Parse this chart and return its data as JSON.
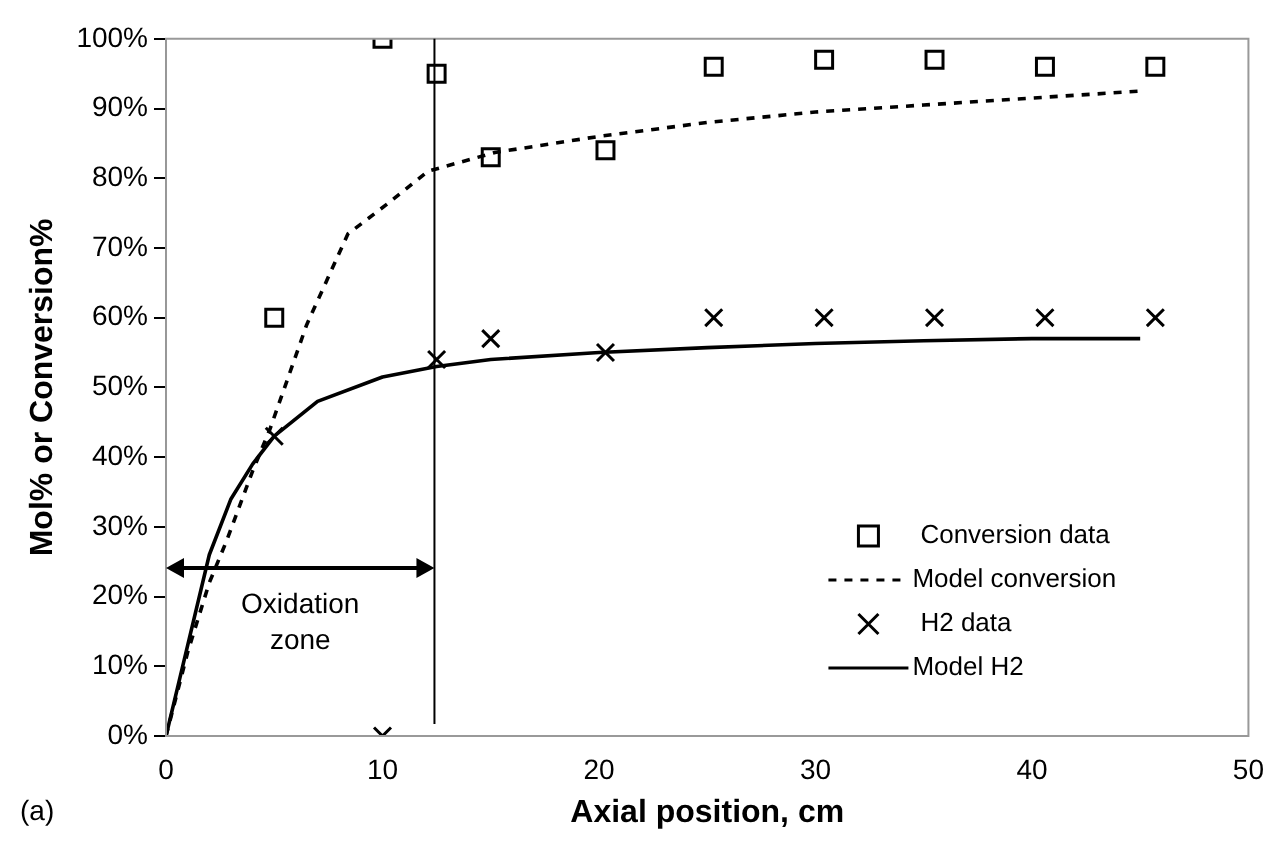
{
  "chart_data": {
    "type": "scatter",
    "xlabel": "Axial position, cm",
    "ylabel": "Mol% or Conversion%",
    "xlim": [
      0,
      50
    ],
    "xticks": [
      0,
      10,
      20,
      30,
      40,
      50
    ],
    "ylim": [
      0,
      100
    ],
    "yticks": [
      {
        "value": 0,
        "label": "0%"
      },
      {
        "value": 10,
        "label": "10%"
      },
      {
        "value": 20,
        "label": "20%"
      },
      {
        "value": 30,
        "label": "30%"
      },
      {
        "value": 40,
        "label": "40%"
      },
      {
        "value": 50,
        "label": "50%"
      },
      {
        "value": 60,
        "label": "60%"
      },
      {
        "value": 70,
        "label": "70%"
      },
      {
        "value": 80,
        "label": "80%"
      },
      {
        "value": 90,
        "label": "90%"
      },
      {
        "value": 100,
        "label": "100%"
      }
    ],
    "grid": false,
    "legend": "bottom right",
    "series": [
      {
        "name": "Conversion data",
        "marker": "square",
        "color": "#000000",
        "x": [
          5,
          10,
          12.5,
          15,
          20.3,
          25.3,
          30.4,
          35.5,
          40.6,
          45.7
        ],
        "values": [
          60,
          100,
          95,
          83,
          84,
          96,
          97,
          97,
          96,
          96
        ]
      },
      {
        "name": "Model conversion",
        "type": "line",
        "marker": "none",
        "line_style": "dashed",
        "color": "#000000",
        "x": [
          0,
          1,
          2,
          2.8,
          4,
          4.8,
          6.5,
          8.4,
          10.3,
          12.1,
          15.2,
          20,
          25,
          30,
          35,
          40,
          45
        ],
        "values": [
          0,
          12,
          22,
          28,
          38,
          44,
          59,
          72,
          76.5,
          81,
          83.7,
          86,
          88,
          89.5,
          90.5,
          91.5,
          92.5
        ]
      },
      {
        "name": "H2 data",
        "marker": "cross",
        "color": "#000000",
        "x": [
          5,
          10,
          12.5,
          15,
          20.3,
          25.3,
          30.4,
          35.5,
          40.6,
          45.7
        ],
        "values": [
          43,
          0,
          54,
          57,
          55,
          60,
          60,
          60,
          60,
          60
        ]
      },
      {
        "name": "Model H2",
        "type": "line",
        "marker": "none",
        "line_style": "solid",
        "color": "#000000",
        "x": [
          0,
          1,
          2,
          3,
          4,
          5,
          7,
          10,
          12.5,
          15,
          20,
          25,
          30,
          35,
          40,
          45
        ],
        "values": [
          0,
          13,
          26,
          34,
          39,
          43,
          48,
          51.5,
          53,
          54,
          55,
          55.7,
          56.3,
          56.7,
          57,
          57
        ]
      }
    ],
    "ref_lines": [
      {
        "axis": "x",
        "value": 12.4,
        "color": "#000000"
      }
    ],
    "annotations": [
      "Oxidation zone",
      "(a)"
    ]
  }
}
